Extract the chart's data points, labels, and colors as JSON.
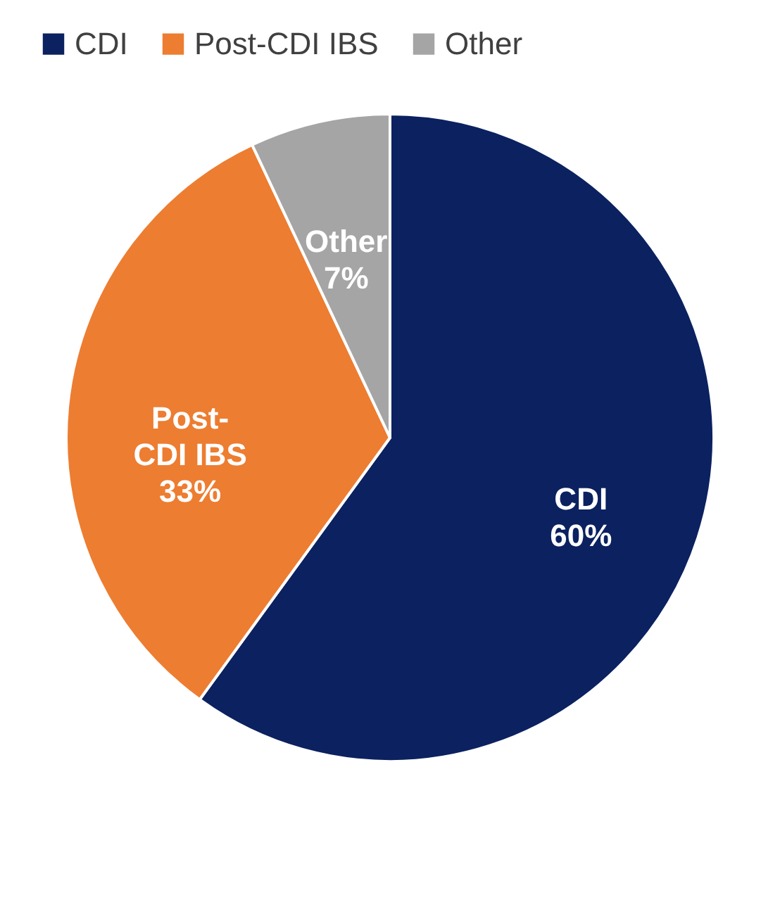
{
  "chart_data": {
    "type": "pie",
    "categories": [
      "CDI",
      "Post-CDI IBS",
      "Other"
    ],
    "values": [
      60,
      33,
      7
    ],
    "colors": [
      "#0b2160",
      "#ed7d31",
      "#a5a5a5"
    ],
    "value_labels": [
      "60%",
      "33%",
      "7%"
    ],
    "legend": "top"
  }
}
